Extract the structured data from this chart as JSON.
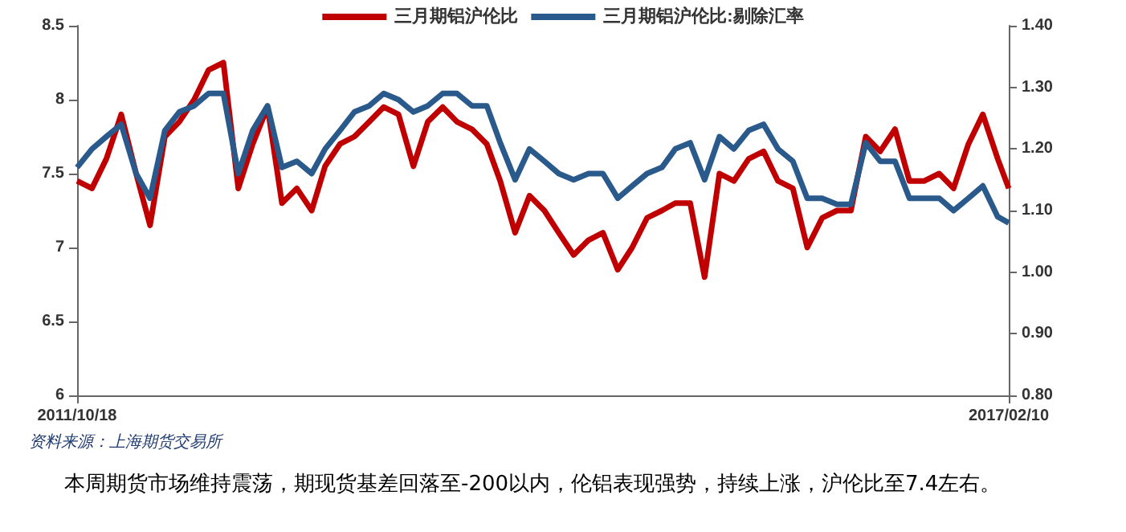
{
  "chart_data": {
    "type": "line",
    "x": [
      "2011-10-18",
      "2011-11-18",
      "2011-12-18",
      "2012-01-18",
      "2012-02-18",
      "2012-03-18",
      "2012-04-18",
      "2012-05-18",
      "2012-06-18",
      "2012-07-18",
      "2012-08-18",
      "2012-09-18",
      "2012-10-18",
      "2012-11-18",
      "2012-12-18",
      "2013-01-18",
      "2013-02-18",
      "2013-03-18",
      "2013-04-18",
      "2013-05-18",
      "2013-06-18",
      "2013-07-18",
      "2013-08-18",
      "2013-09-18",
      "2013-10-18",
      "2013-11-18",
      "2013-12-18",
      "2014-01-18",
      "2014-02-18",
      "2014-03-18",
      "2014-04-18",
      "2014-05-18",
      "2014-06-18",
      "2014-07-18",
      "2014-08-18",
      "2014-09-18",
      "2014-10-18",
      "2014-11-18",
      "2014-12-18",
      "2015-01-18",
      "2015-02-18",
      "2015-03-18",
      "2015-04-18",
      "2015-05-18",
      "2015-06-18",
      "2015-07-18",
      "2015-08-18",
      "2015-09-18",
      "2015-10-18",
      "2015-11-18",
      "2015-12-18",
      "2016-01-18",
      "2016-02-18",
      "2016-03-18",
      "2016-04-18",
      "2016-05-18",
      "2016-06-18",
      "2016-07-18",
      "2016-08-18",
      "2016-09-18",
      "2016-10-18",
      "2016-11-18",
      "2016-12-18",
      "2017-01-18",
      "2017-02-10"
    ],
    "series": [
      {
        "name": "三月期铝沪伦比",
        "color": "#c00000",
        "values": [
          7.45,
          7.4,
          7.6,
          7.9,
          7.5,
          7.15,
          7.75,
          7.85,
          8.0,
          8.2,
          8.25,
          7.4,
          7.7,
          7.95,
          7.3,
          7.4,
          7.25,
          7.55,
          7.7,
          7.75,
          7.85,
          7.95,
          7.9,
          7.55,
          7.85,
          7.95,
          7.85,
          7.8,
          7.7,
          7.45,
          7.1,
          7.35,
          7.25,
          7.1,
          6.95,
          7.05,
          7.1,
          6.85,
          7.0,
          7.2,
          7.25,
          7.3,
          7.3,
          6.8,
          7.5,
          7.45,
          7.6,
          7.65,
          7.45,
          7.4,
          7.0,
          7.2,
          7.25,
          7.25,
          7.75,
          7.65,
          7.8,
          7.45,
          7.45,
          7.5,
          7.4,
          7.7,
          7.9,
          7.6,
          7.4
        ]
      },
      {
        "name": "三月期铝沪伦比:剔除汇率",
        "color": "#2a5a8c",
        "axis": "y2",
        "values": [
          1.17,
          1.2,
          1.22,
          1.24,
          1.16,
          1.12,
          1.23,
          1.26,
          1.27,
          1.29,
          1.29,
          1.16,
          1.23,
          1.27,
          1.17,
          1.18,
          1.16,
          1.2,
          1.23,
          1.26,
          1.27,
          1.29,
          1.28,
          1.26,
          1.27,
          1.29,
          1.29,
          1.27,
          1.27,
          1.21,
          1.15,
          1.2,
          1.18,
          1.16,
          1.15,
          1.16,
          1.16,
          1.12,
          1.14,
          1.16,
          1.17,
          1.2,
          1.21,
          1.15,
          1.22,
          1.2,
          1.23,
          1.24,
          1.2,
          1.18,
          1.12,
          1.12,
          1.11,
          1.11,
          1.21,
          1.18,
          1.18,
          1.12,
          1.12,
          1.12,
          1.1,
          1.12,
          1.14,
          1.09,
          1.08
        ]
      }
    ],
    "xlim": [
      "2011-10-18",
      "2017-02-10"
    ],
    "xticks": [
      {
        "value": "2011-10-18",
        "label": "2011/10/18"
      },
      {
        "value": "2017-02-10",
        "label": "2017/02/10"
      }
    ],
    "ylim": [
      6,
      8.5
    ],
    "yticks": [
      6,
      6.5,
      7,
      7.5,
      8,
      8.5
    ],
    "y2lim": [
      0.8,
      1.4
    ],
    "y2ticks": [
      {
        "value": 0.8,
        "label": "0.80"
      },
      {
        "value": 0.9,
        "label": "0.90"
      },
      {
        "value": 1.0,
        "label": "1.00"
      },
      {
        "value": 1.1,
        "label": "1.10"
      },
      {
        "value": 1.2,
        "label": "1.20"
      },
      {
        "value": 1.3,
        "label": "1.30"
      },
      {
        "value": 1.4,
        "label": "1.40"
      }
    ],
    "grid": false,
    "legend": "top",
    "marker": "none",
    "line_style": "solid",
    "annotations": [
      "资料来源：上海期货交易所",
      "本周期货市场维持震荡，期现货基差回落至-200以内，伦铝表现强势，持续上涨，沪伦比至7.4左右。"
    ]
  }
}
